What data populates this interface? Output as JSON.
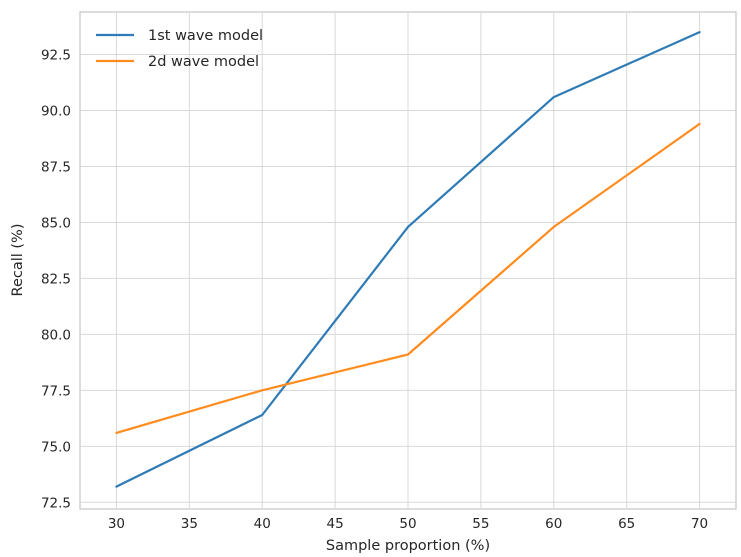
{
  "chart_data": {
    "type": "line",
    "title": "",
    "xlabel": "Sample proportion (%)",
    "ylabel": "Recall (%)",
    "xlim": [
      27.5,
      72.5
    ],
    "ylim": [
      72.2,
      94.4
    ],
    "x_ticks": [
      30,
      35,
      40,
      45,
      50,
      55,
      60,
      65,
      70
    ],
    "y_ticks": [
      72.5,
      75.0,
      77.5,
      80.0,
      82.5,
      85.0,
      87.5,
      90.0,
      92.5
    ],
    "x_tick_labels": [
      "30",
      "35",
      "40",
      "45",
      "50",
      "55",
      "60",
      "65",
      "70"
    ],
    "y_tick_labels": [
      "72.5",
      "75.0",
      "77.5",
      "80.0",
      "82.5",
      "85.0",
      "87.5",
      "90.0",
      "92.5"
    ],
    "grid": true,
    "legend_position": "top-left",
    "x": [
      30,
      40,
      50,
      60,
      70
    ],
    "series": [
      {
        "name": "1st wave model",
        "color": "#2f7bb6",
        "values": [
          73.2,
          76.4,
          84.8,
          90.6,
          93.5
        ]
      },
      {
        "name": "2d wave model",
        "color": "#ff8c1f",
        "values": [
          75.6,
          77.5,
          79.1,
          84.8,
          89.4
        ]
      }
    ]
  }
}
